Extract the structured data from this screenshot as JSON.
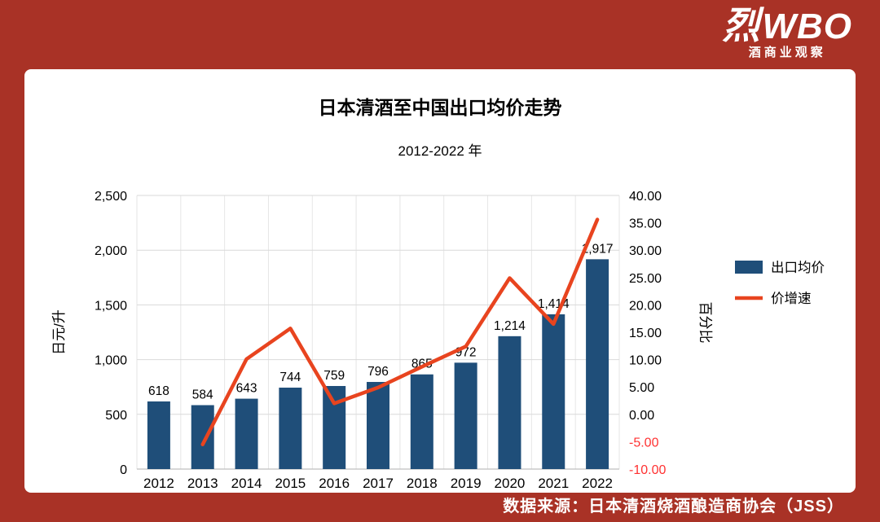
{
  "page": {
    "background_color": "#A93226",
    "logo": {
      "glyph": "烈",
      "brand": "WBO",
      "subtitle": "酒商业观察"
    },
    "source_note": "数据来源：日本清酒烧酒酿造商协会（JSS）"
  },
  "chart_data": {
    "type": "bar",
    "combo": "bar+line dual axis",
    "title": "日本清酒至中国出口均价走势",
    "subtitle": "2012-2022 年",
    "categories": [
      "2012",
      "2013",
      "2014",
      "2015",
      "2016",
      "2017",
      "2018",
      "2019",
      "2020",
      "2021",
      "2022"
    ],
    "series": [
      {
        "name": "出口均价",
        "type": "bar",
        "axis": "left",
        "color": "#1F4E79",
        "values": [
          618,
          584,
          643,
          744,
          759,
          796,
          865,
          972,
          1214,
          1414,
          1917
        ],
        "value_labels": [
          "618",
          "584",
          "643",
          "744",
          "759",
          "796",
          "865",
          "972",
          "1,214",
          "1,414",
          "1,917"
        ]
      },
      {
        "name": "价增速",
        "type": "line",
        "axis": "right",
        "color": "#E8441F",
        "values": [
          null,
          -5.5,
          10.1,
          15.7,
          2.0,
          4.9,
          8.7,
          12.4,
          24.9,
          16.5,
          35.6
        ]
      }
    ],
    "left_axis": {
      "title": "日元/升",
      "min": 0,
      "max": 2500,
      "step": 500,
      "tick_labels": [
        "0",
        "500",
        "1,000",
        "1,500",
        "2,000",
        "2,500"
      ]
    },
    "right_axis": {
      "title": "百分比",
      "min": -10,
      "max": 40,
      "step": 5,
      "tick_labels": [
        "-10.00",
        "-5.00",
        "0.00",
        "5.00",
        "10.00",
        "15.00",
        "20.00",
        "25.00",
        "30.00",
        "35.00",
        "40.00"
      ],
      "negative_tick_color": "#FF3232"
    },
    "legend": {
      "position": "right",
      "items": [
        {
          "label": "出口均价",
          "marker": "bar",
          "color": "#1F4E79"
        },
        {
          "label": "价增速",
          "marker": "line",
          "color": "#E8441F"
        }
      ]
    },
    "grid": true
  }
}
